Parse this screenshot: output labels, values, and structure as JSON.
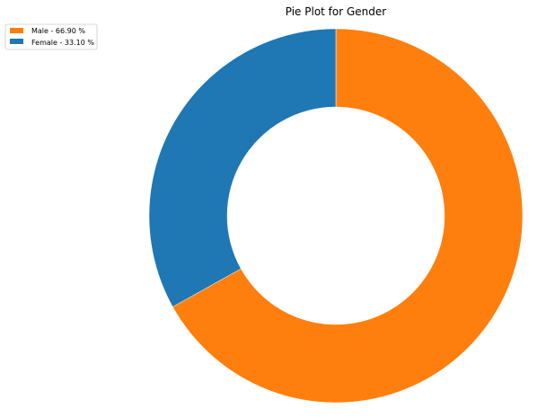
{
  "chart_data": {
    "type": "pie",
    "title": "Pie Plot for Gender",
    "donut": true,
    "categories": [
      "Male",
      "Female"
    ],
    "values": [
      66.9,
      33.1
    ],
    "colors": [
      "#ff7f0e",
      "#1f77b4"
    ],
    "legend": {
      "placement": "top-left",
      "labels": [
        "Male - 66.90 %",
        "Female - 33.10 %"
      ]
    }
  }
}
